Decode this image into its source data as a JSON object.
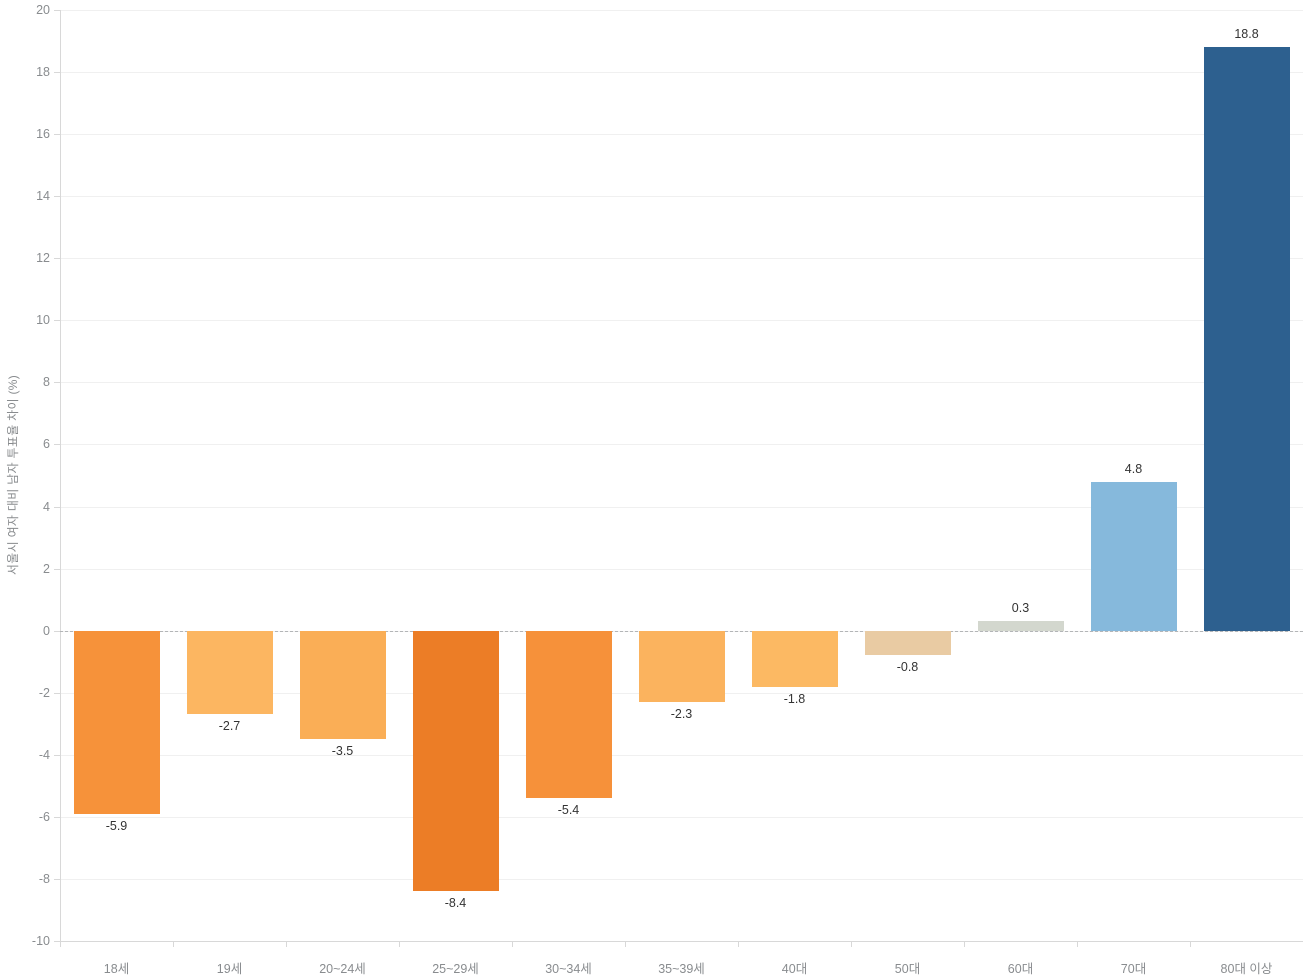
{
  "chart_data": {
    "type": "bar",
    "title": "",
    "xlabel": "",
    "ylabel": "서울시 여자 대비 남자 투표율 차이 (%)",
    "categories": [
      "18세",
      "19세",
      "20~24세",
      "25~29세",
      "30~34세",
      "35~39세",
      "40대",
      "50대",
      "60대",
      "70대",
      "80대 이상"
    ],
    "values": [
      -5.9,
      -2.7,
      -3.5,
      -8.4,
      -5.4,
      -2.3,
      -1.8,
      -0.8,
      0.3,
      4.8,
      18.8
    ],
    "value_labels": [
      "-5.9",
      "-2.7",
      "-3.5",
      "-8.4",
      "-5.4",
      "-2.3",
      "-1.8",
      "-0.8",
      "0.3",
      "4.8",
      "18.8"
    ],
    "bar_colors": [
      "#F6923A",
      "#FCB661",
      "#FAAE56",
      "#EC7D26",
      "#F6913A",
      "#FBB35E",
      "#FCB963",
      "#E9CBA3",
      "#D3D7CE",
      "#86B9DC",
      "#2D608F"
    ],
    "ylim": [
      -10,
      20
    ],
    "ytick_step": 2,
    "ytick_labels": [
      "-10",
      "-8",
      "-6",
      "-4",
      "-2",
      "0",
      "2",
      "4",
      "6",
      "8",
      "10",
      "12",
      "14",
      "16",
      "18",
      "20"
    ],
    "grid": "horizontal-only",
    "legend": "none",
    "zero_line": "dashed"
  },
  "style": {
    "background": "#ffffff",
    "axis_text_color": "#898c8f",
    "value_label_color": "#333333",
    "gridline_color": "#f0f0f0",
    "axis_line_color": "#d8d8d8",
    "zero_line_color": "#b3b5b7"
  }
}
